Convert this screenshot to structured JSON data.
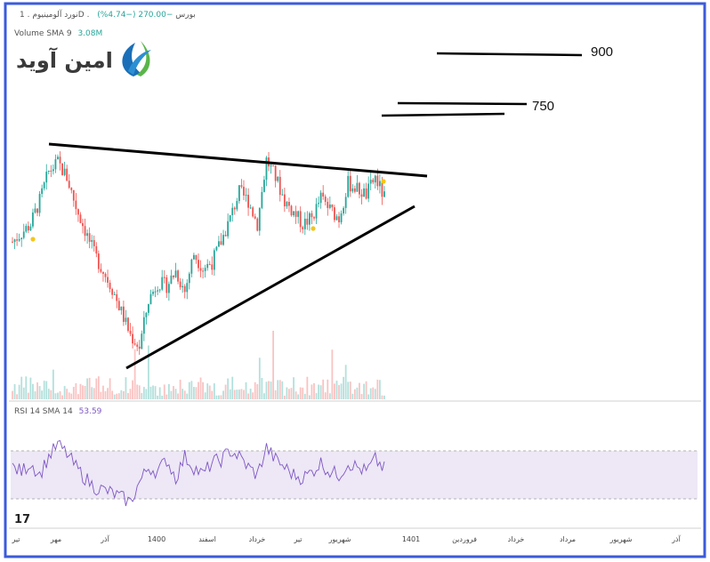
{
  "header": {
    "symbol_line": "نورد آلومینیوم . 1D . بورس",
    "change": "−270.00 (−4.74%)",
    "volume_label": "Volume SMA 9",
    "volume_value": "3.08M"
  },
  "brand": {
    "name": "امین آوید",
    "logo_icon": "amin-avid-logo-icon",
    "colors": {
      "blue": "#1b6fb8",
      "green": "#5ab54a"
    }
  },
  "tradingview_logo": "17",
  "targets": [
    {
      "label": "900"
    },
    {
      "label": "750"
    }
  ],
  "rsi": {
    "label": "RSI 14 SMA 14",
    "value": "53.59"
  },
  "x_axis_labels": [
    "تیر",
    "مهر",
    "آذر",
    "1400",
    "اسفند",
    "خرداد",
    "تیر",
    "شهریور",
    "1401",
    "فروردین",
    "خرداد",
    "مرداد",
    "شهریور",
    "آذر"
  ],
  "colors": {
    "frame": "#3b5bdb",
    "up": "#26a69a",
    "down": "#ef5350",
    "rsi_line": "#7e57c2",
    "rsi_band": "#ede7f6",
    "trendline": "#000000",
    "dividend_marker": "#f5c518"
  },
  "chart_data": [
    {
      "type": "candlestick",
      "title": "نورد آلومینیوم",
      "price_series_approx": [
        4900,
        5050,
        5200,
        5600,
        6100,
        6250,
        6000,
        5500,
        5100,
        4700,
        4400,
        4100,
        3700,
        3300,
        3100,
        3900,
        4200,
        4150,
        4400,
        4050,
        4700,
        4450,
        4550,
        4900,
        5300,
        5750,
        5600,
        5200,
        6300,
        6000,
        5600,
        5400,
        5200,
        5300,
        5650,
        5450,
        5300,
        5900,
        5800,
        5700,
        6000,
        5650
      ],
      "trendlines": [
        "descending resistance line",
        "ascending support line"
      ],
      "target_levels": [
        {
          "label": "900"
        },
        {
          "label": "750"
        }
      ]
    },
    {
      "type": "line",
      "title": "RSI 14 SMA 14",
      "last_value": 53.59,
      "rsi_series_approx": [
        55,
        52,
        58,
        50,
        62,
        70,
        64,
        55,
        48,
        42,
        40,
        38,
        35,
        32,
        45,
        55,
        52,
        60,
        48,
        62,
        55,
        50,
        58,
        60,
        66,
        62,
        55,
        50,
        68,
        60,
        55,
        50,
        48,
        52,
        58,
        52,
        50,
        58,
        55,
        52,
        60,
        54
      ]
    }
  ]
}
